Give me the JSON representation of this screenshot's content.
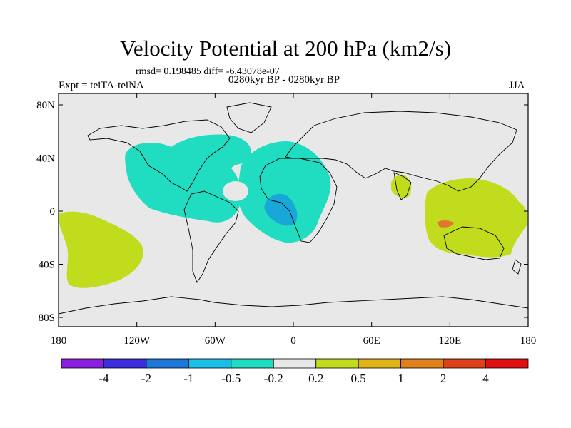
{
  "title": "Velocity Potential at 200 hPa (km2/s)",
  "stats_text": "rmsd= 0.198485 diff= -6.43078e-07",
  "left_label": "Expt = teiTA-teiNA",
  "center_label": "0280kyr BP - 0280kyr BP",
  "right_label": "JJA",
  "y_ticks": [
    "80N",
    "40N",
    "0",
    "40S",
    "80S"
  ],
  "x_ticks": [
    "180",
    "120W",
    "60W",
    "0",
    "60E",
    "120E",
    "180"
  ],
  "colorbar": {
    "colors": [
      "#8a1fe0",
      "#3c2ee0",
      "#1e78dc",
      "#18c0e8",
      "#20dcc0",
      "#e8e8e8",
      "#c0dc1c",
      "#e0b418",
      "#e08018",
      "#e04018",
      "#e01010"
    ],
    "labels": [
      "-4",
      "-2",
      "-1",
      "-0.5",
      "-0.2",
      "0.2",
      "0.5",
      "1",
      "2",
      "4"
    ]
  },
  "map_colors": {
    "background": "#e8e8e8",
    "negative_weak": "#20dcc0",
    "negative_moderate": "#18a8d8",
    "positive_weak": "#c0dc1c",
    "positive_moderate": "#e07830"
  }
}
